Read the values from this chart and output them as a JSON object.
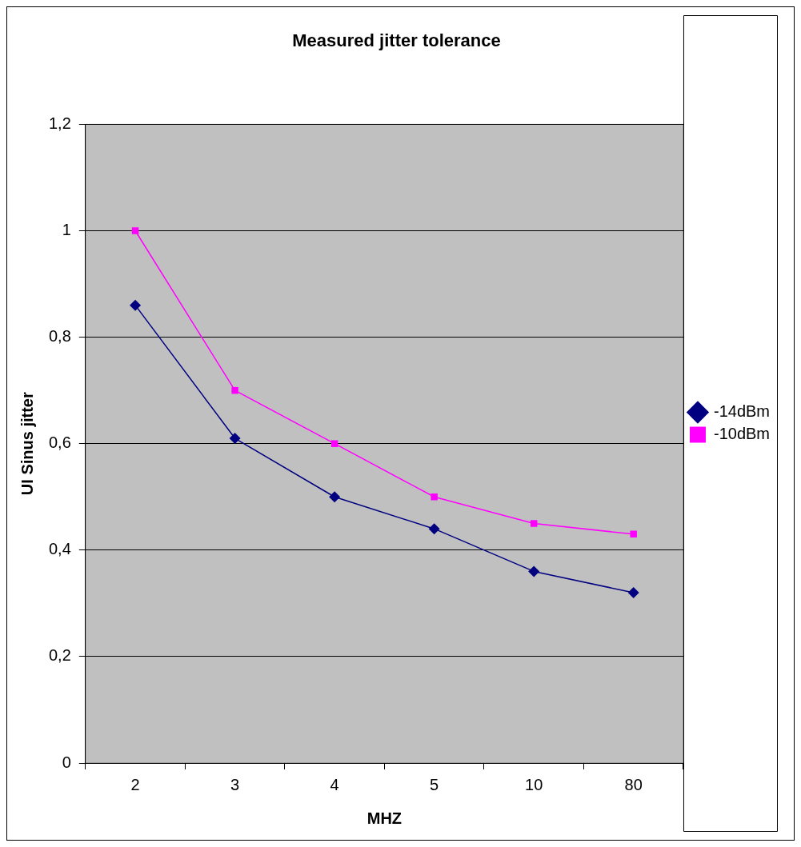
{
  "chart_data": {
    "type": "line",
    "title": "Measured jitter tolerance",
    "xlabel": "MHZ",
    "ylabel": "UI Sinus jitter",
    "categories": [
      "2",
      "3",
      "4",
      "5",
      "10",
      "80"
    ],
    "series": [
      {
        "name": "-14dBm",
        "color": "#000080",
        "marker": "diamond",
        "values": [
          0.86,
          0.61,
          0.5,
          0.44,
          0.36,
          0.32
        ]
      },
      {
        "name": "-10dBm",
        "color": "#ff00ff",
        "marker": "square",
        "values": [
          1.0,
          0.7,
          0.6,
          0.5,
          0.45,
          0.43
        ]
      }
    ],
    "ylim": [
      0,
      1.2
    ],
    "yticks": [
      0,
      {
        "value": 0.2,
        "label": "0,2"
      },
      {
        "value": 0.4,
        "label": "0,4"
      },
      {
        "value": 0.6,
        "label": "0,6"
      },
      {
        "value": 0.8,
        "label": "0,8"
      },
      1,
      {
        "value": 1.2,
        "label": "1,2"
      }
    ],
    "grid": "y",
    "legend": "right"
  }
}
